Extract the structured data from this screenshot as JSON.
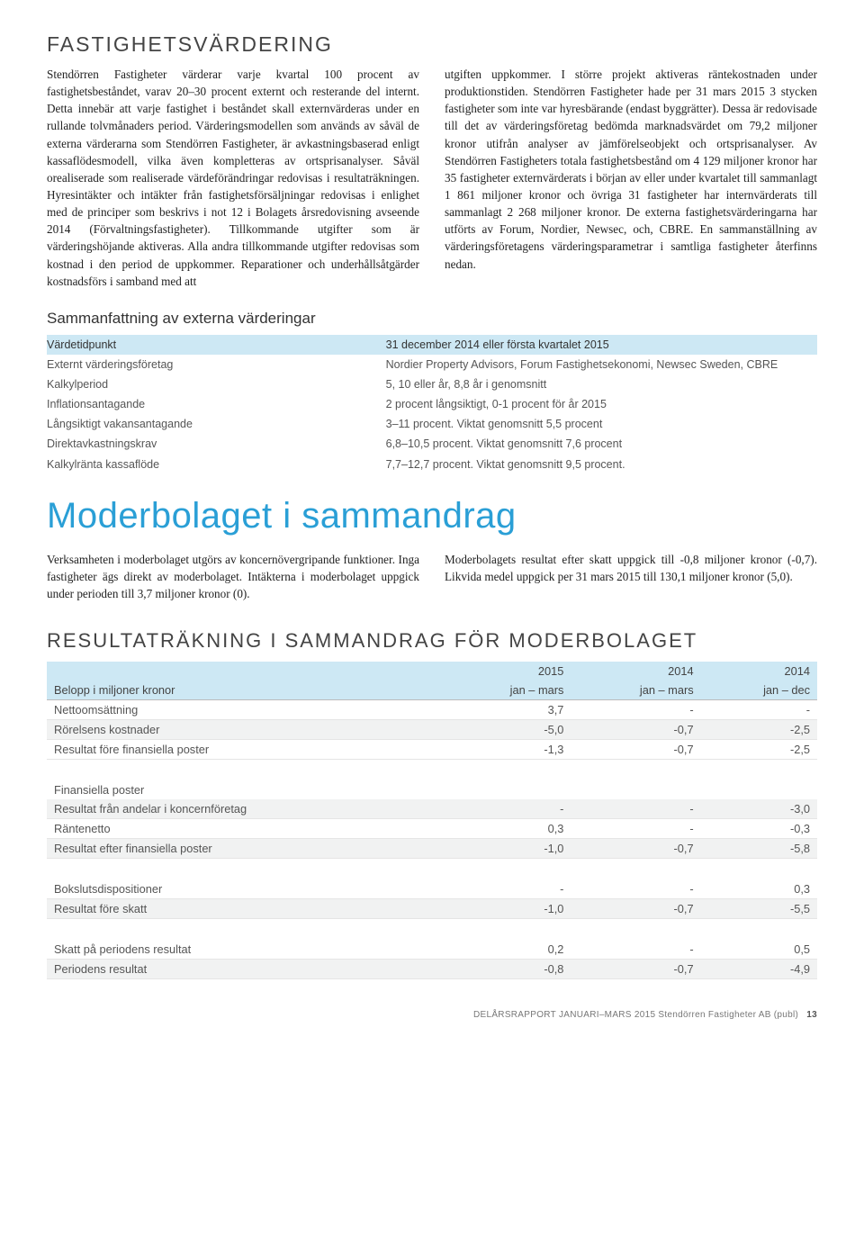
{
  "section1": {
    "heading": "FASTIGHETSVÄRDERING",
    "colLeft": "Stendörren Fastigheter värderar varje kvartal 100 procent av fastighetsbeståndet, varav 20–30 procent externt och resterande del internt. Detta innebär att varje fastighet i beståndet skall externvärderas under en rullande tolvmånaders period. Värderingsmodellen som används av såväl de externa värderarna som Stendörren Fastigheter, är avkastningsbaserad enligt kassaflödesmodell, vilka även kompletteras av ortsprisanalyser. Såväl orealiserade som realiserade värdeförändringar redovisas i resultaträkningen. Hyresintäkter och intäkter från fastighetsförsäljningar redovisas i enlighet med de principer som beskrivs i not 12 i Bolagets årsredovisning avseende 2014 (Förvaltningsfastigheter). Tillkommande utgifter som är värderingshöjande aktiveras. Alla andra tillkommande utgifter redovisas som kostnad i den period de uppkommer. Reparationer och underhållsåtgärder kostnadsförs i samband med att",
    "colRight": "utgiften uppkommer. I större projekt aktiveras räntekostnaden under produktionstiden. Stendörren Fastigheter hade per 31 mars 2015 3 stycken fastigheter som inte var hyresbärande (endast byggrätter). Dessa är redovisade till det av värderingsföretag bedömda marknadsvärdet om 79,2 miljoner kronor utifrån analyser av jämförelseobjekt och ortsprisanalyser. Av Stendörren Fastigheters totala fastighetsbestånd om 4 129 miljoner kronor har 35 fastigheter externvärderats i början av eller under kvartalet till sammanlagt 1 861 miljoner kronor och övriga 31 fastigheter har internvärderats till sammanlagt 2 268 miljoner kronor. De externa fastighetsvärderingarna har utförts av Forum, Nordier, Newsec, och, CBRE. En sammanställning av värderingsföretagens värderingsparametrar i samtliga fastigheter återfinns nedan."
  },
  "summaryHeading": "Sammanfattning av externa värderingar",
  "kvRows": [
    {
      "k": "Värdetidpunkt",
      "v": "31 december 2014 eller första kvartalet 2015",
      "hl": true
    },
    {
      "k": "Externt värderingsföretag",
      "v": "Nordier Property Advisors, Forum Fastighetsekonomi, Newsec Sweden, CBRE",
      "hl": false
    },
    {
      "k": "Kalkylperiod",
      "v": "5, 10 eller år, 8,8 år i genomsnitt",
      "hl": false
    },
    {
      "k": "Inflationsantagande",
      "v": "2 procent långsiktigt, 0-1 procent för år 2015",
      "hl": false
    },
    {
      "k": "Långsiktigt vakansantagande",
      "v": "3–11 procent. Viktat genomsnitt 5,5 procent",
      "hl": false
    },
    {
      "k": "Direktavkastningskrav",
      "v": "6,8–10,5 procent. Viktat genomsnitt 7,6 procent",
      "hl": false
    },
    {
      "k": "Kalkylränta kassaflöde",
      "v": "7,7–12,7 procent. Viktat genomsnitt 9,5 procent.",
      "hl": false
    }
  ],
  "bigHeading": "Moderbolaget i sammandrag",
  "mb": {
    "left": "Verksamheten i moderbolaget utgörs av koncernövergripande funktioner. Inga fastigheter ägs direkt av moderbolaget. Intäkterna i moderbolaget uppgick under perioden till 3,7 miljoner kronor (0).",
    "right": "Moderbolagets resultat efter skatt uppgick till -0,8 miljoner kronor (-0,7). Likvida medel uppgick per 31 mars 2015 till 130,1 miljoner kronor (5,0)."
  },
  "finHeading": "RESULTATRÄKNING I SAMMANDRAG FÖR MODERBOLAGET",
  "finTable": {
    "head1": [
      "Belopp i miljoner kronor",
      "2015",
      "2014",
      "2014"
    ],
    "head2": [
      "",
      "jan – mars",
      "jan – mars",
      "jan – dec"
    ],
    "rows": [
      {
        "cells": [
          "Nettoomsättning",
          "3,7",
          "-",
          "-"
        ],
        "shade": false
      },
      {
        "cells": [
          "Rörelsens kostnader",
          "-5,0",
          "-0,7",
          "-2,5"
        ],
        "shade": true
      },
      {
        "cells": [
          "Resultat före finansiella poster",
          "-1,3",
          "-0,7",
          "-2,5"
        ],
        "shade": false
      },
      {
        "gap": true
      },
      {
        "cells": [
          "Finansiella poster",
          "",
          "",
          ""
        ],
        "shade": false,
        "noborder": true
      },
      {
        "cells": [
          "Resultat från andelar i koncernföretag",
          "-",
          "-",
          "-3,0"
        ],
        "shade": true
      },
      {
        "cells": [
          "Räntenetto",
          "0,3",
          "-",
          "-0,3"
        ],
        "shade": false
      },
      {
        "cells": [
          "Resultat efter finansiella poster",
          "-1,0",
          "-0,7",
          "-5,8"
        ],
        "shade": true
      },
      {
        "gap": true
      },
      {
        "cells": [
          "Bokslutsdispositioner",
          "-",
          "-",
          "0,3"
        ],
        "shade": false
      },
      {
        "cells": [
          "Resultat före skatt",
          "-1,0",
          "-0,7",
          "-5,5"
        ],
        "shade": true
      },
      {
        "gap": true
      },
      {
        "cells": [
          "Skatt på periodens resultat",
          "0,2",
          "-",
          "0,5"
        ],
        "shade": false
      },
      {
        "cells": [
          "Periodens resultat",
          "-0,8",
          "-0,7",
          "-4,9"
        ],
        "shade": true
      }
    ]
  },
  "footer": {
    "text": "DELÅRSRAPPORT JANUARI–MARS 2015  Stendörren Fastigheter AB (publ)",
    "page": "13"
  }
}
